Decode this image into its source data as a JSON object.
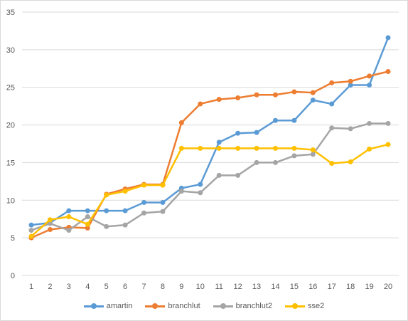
{
  "chart_data": {
    "type": "line",
    "title": "",
    "xlabel": "",
    "ylabel": "",
    "x": [
      1,
      2,
      3,
      4,
      5,
      6,
      7,
      8,
      9,
      10,
      11,
      12,
      13,
      14,
      15,
      16,
      17,
      18,
      19,
      20
    ],
    "ylim": [
      0,
      35
    ],
    "yticks": [
      0,
      5,
      10,
      15,
      20,
      25,
      30,
      35
    ],
    "grid": "horizontal",
    "legend_position": "bottom",
    "series": [
      {
        "name": "amartin",
        "color": "#5b9bd5",
        "values": [
          6.7,
          7.0,
          8.6,
          8.6,
          8.6,
          8.6,
          9.7,
          9.7,
          11.6,
          12.1,
          17.7,
          18.9,
          19.0,
          20.6,
          20.6,
          23.3,
          22.8,
          25.3,
          25.3,
          31.6
        ]
      },
      {
        "name": "branchlut",
        "color": "#ed7d31",
        "values": [
          5.0,
          6.1,
          6.4,
          6.3,
          10.8,
          11.5,
          12.1,
          12.1,
          20.3,
          22.8,
          23.4,
          23.6,
          24.0,
          24.0,
          24.4,
          24.3,
          25.6,
          25.8,
          26.5,
          27.1
        ]
      },
      {
        "name": "branchlut2",
        "color": "#a5a5a5",
        "values": [
          6.0,
          6.9,
          6.0,
          7.8,
          6.5,
          6.7,
          8.3,
          8.5,
          11.2,
          11.0,
          13.3,
          13.3,
          15.0,
          15.0,
          15.9,
          16.1,
          19.6,
          19.5,
          20.2,
          20.2
        ]
      },
      {
        "name": "sse2",
        "color": "#ffc000",
        "values": [
          5.2,
          7.4,
          7.8,
          6.8,
          10.7,
          11.2,
          12.0,
          12.0,
          16.9,
          16.9,
          16.9,
          16.9,
          16.9,
          16.9,
          16.9,
          16.7,
          14.9,
          15.1,
          16.8,
          17.4
        ]
      }
    ]
  }
}
